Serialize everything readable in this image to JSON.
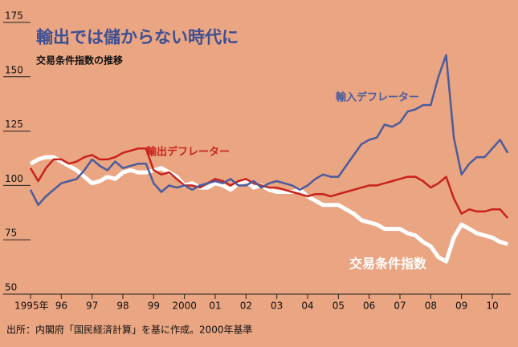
{
  "chart_data": {
    "type": "line",
    "title": "輸出では儲からない時代に",
    "subtitle": "交易条件指数の推移",
    "source": "出所：内閣府「国民経済計算」を基に作成。2000年基準",
    "x": [
      1995,
      1995.25,
      1995.5,
      1995.75,
      1996,
      1996.25,
      1996.5,
      1996.75,
      1997,
      1997.25,
      1997.5,
      1997.75,
      1998,
      1998.25,
      1998.5,
      1998.75,
      1999,
      1999.25,
      1999.5,
      1999.75,
      2000,
      2000.25,
      2000.5,
      2000.75,
      2001,
      2001.25,
      2001.5,
      2001.75,
      2002,
      2002.25,
      2002.5,
      2002.75,
      2003,
      2003.25,
      2003.5,
      2003.75,
      2004,
      2004.25,
      2004.5,
      2004.75,
      2005,
      2005.25,
      2005.5,
      2005.75,
      2006,
      2006.25,
      2006.5,
      2006.75,
      2007,
      2007.25,
      2007.5,
      2007.75,
      2008,
      2008.25,
      2008.5,
      2008.75,
      2009,
      2009.25,
      2009.5,
      2009.75,
      2010,
      2010.25,
      2010.5
    ],
    "series": [
      {
        "name": "交易条件指数",
        "color": "#ffffff",
        "values": [
          110,
          112,
          113,
          113,
          111,
          109,
          107,
          104,
          101,
          102,
          104,
          103,
          106,
          107,
          106,
          106,
          107,
          108,
          106,
          104,
          100,
          101,
          99,
          99,
          101,
          100,
          98,
          101,
          102,
          99,
          100,
          98,
          97,
          97,
          97,
          98,
          95,
          93,
          91,
          91,
          91,
          89,
          87,
          84,
          83,
          82,
          80,
          80,
          80,
          78,
          77,
          74,
          72,
          67,
          65,
          76,
          82,
          80,
          78,
          77,
          76,
          74,
          73
        ]
      },
      {
        "name": "輸出デフレーター",
        "color": "#c8231b",
        "values": [
          108,
          102,
          108,
          112,
          112,
          110,
          111,
          113,
          114,
          112,
          112,
          113,
          115,
          116,
          117,
          117,
          107,
          105,
          106,
          103,
          100,
          100,
          99,
          101,
          103,
          102,
          100,
          102,
          103,
          101,
          100,
          99,
          99,
          98,
          97,
          96,
          95,
          96,
          96,
          95,
          96,
          97,
          98,
          99,
          100,
          100,
          101,
          102,
          103,
          104,
          104,
          102,
          99,
          101,
          104,
          94,
          87,
          89,
          88,
          88,
          89,
          89,
          85
        ]
      },
      {
        "name": "輸入デフレーター",
        "color": "#4b5c9c",
        "values": [
          98,
          91,
          95,
          98,
          101,
          102,
          103,
          107,
          112,
          109,
          107,
          111,
          108,
          109,
          110,
          110,
          101,
          97,
          100,
          99,
          100,
          98,
          100,
          101,
          102,
          101,
          103,
          100,
          100,
          102,
          99,
          101,
          102,
          101,
          100,
          98,
          100,
          103,
          105,
          104,
          104,
          109,
          114,
          119,
          121,
          122,
          128,
          127,
          129,
          134,
          135,
          137,
          137,
          150,
          160,
          122,
          105,
          110,
          113,
          113,
          117,
          121,
          115
        ]
      }
    ],
    "xlim": [
      1995,
      2010.6
    ],
    "xticks": [
      {
        "value": 1995,
        "label": "1995年"
      },
      {
        "value": 1996,
        "label": "96"
      },
      {
        "value": 1997,
        "label": "97"
      },
      {
        "value": 1998,
        "label": "98"
      },
      {
        "value": 1999,
        "label": "99"
      },
      2000,
      {
        "value": 2001,
        "label": "01"
      },
      {
        "value": 2002,
        "label": "02"
      },
      {
        "value": 2003,
        "label": "03"
      },
      {
        "value": 2004,
        "label": "04"
      },
      {
        "value": 2005,
        "label": "05"
      },
      {
        "value": 2006,
        "label": "06"
      },
      {
        "value": 2007,
        "label": "07"
      },
      {
        "value": 2008,
        "label": "08"
      },
      {
        "value": 2009,
        "label": "09"
      },
      {
        "value": 2010,
        "label": "10"
      }
    ],
    "ylim": [
      50,
      175
    ],
    "yticks": [
      50,
      75,
      100,
      125,
      150,
      175
    ]
  }
}
